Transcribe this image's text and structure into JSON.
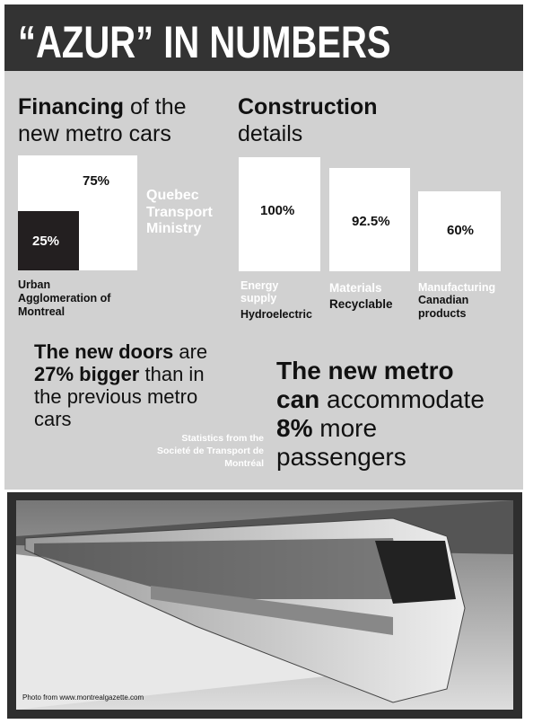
{
  "header": {
    "title": "“AZUR” IN NUMBERS"
  },
  "financing": {
    "heading_bold": "Financing",
    "heading_rest": "of the new metro cars",
    "share_large": "75%",
    "share_large_label": "Quebec Transport Ministry",
    "share_small": "25%",
    "share_small_label": "Urban Agglomeration of Montreal"
  },
  "construction": {
    "heading_bold": "Construction",
    "heading_rest": "details",
    "items": [
      {
        "value": "100%",
        "category": "Energy supply",
        "label": "Hydroelectric"
      },
      {
        "value": "92.5%",
        "category": "Materials",
        "label": "Recyclable"
      },
      {
        "value": "60%",
        "category": "Manufacturing",
        "label": "Canadian products"
      }
    ]
  },
  "doors": {
    "part1": "The new doors",
    "part2": "are",
    "part3": "27% bigger",
    "part4": "than in the previous metro cars"
  },
  "source": "Statistics from the Societé de Transport de Montréal",
  "capacity": {
    "part1": "The new metro can",
    "part2": "accommodate",
    "part3": "8%",
    "part4": "more passengers"
  },
  "photo": {
    "caption": "Photo from www.montrealgazette.com"
  }
}
